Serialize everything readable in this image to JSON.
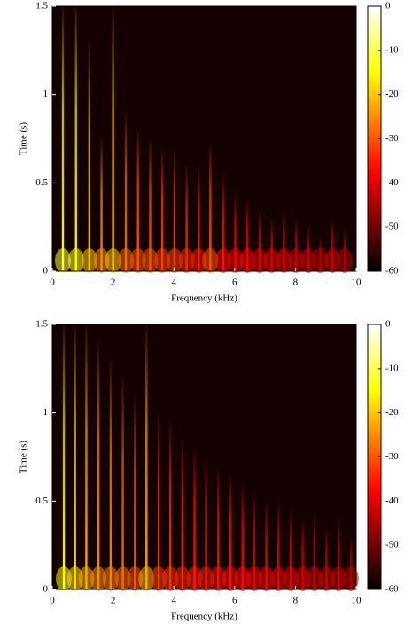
{
  "chart_data": [
    {
      "type": "heatmap",
      "xlabel": "Frequency (kHz)",
      "ylabel": "Time (s)",
      "xlim": [
        0,
        10
      ],
      "ylim": [
        0,
        1.5
      ],
      "xticks": [
        0,
        2,
        4,
        6,
        8,
        10
      ],
      "yticks": [
        0,
        0.5,
        1,
        1.5
      ],
      "clim": [
        -60,
        0
      ],
      "cticks": [
        0,
        -10,
        -20,
        -30,
        -40,
        -50,
        -60
      ],
      "colormap": "hot",
      "x": [
        0.35,
        0.78,
        1.22,
        1.62,
        2.0,
        2.42,
        2.82,
        3.22,
        3.62,
        4.02,
        4.42,
        4.82,
        5.2,
        5.62,
        6.02,
        6.42,
        6.82,
        7.22,
        7.62,
        8.02,
        8.42,
        8.82,
        9.22,
        9.62
      ],
      "values": [
        1.5,
        1.5,
        1.3,
        0.75,
        1.5,
        0.9,
        0.8,
        0.75,
        0.7,
        0.7,
        0.6,
        0.6,
        0.72,
        0.55,
        0.45,
        0.4,
        0.35,
        0.3,
        0.35,
        0.3,
        0.25,
        0.2,
        0.3,
        0.25
      ],
      "levels": [
        -12,
        -15,
        -20,
        -25,
        -20,
        -28,
        -30,
        -30,
        -32,
        -32,
        -34,
        -35,
        -30,
        -36,
        -38,
        -38,
        -40,
        -40,
        -40,
        -42,
        -42,
        -44,
        -42,
        -44
      ]
    },
    {
      "type": "heatmap",
      "xlabel": "Frequency (kHz)",
      "ylabel": "Time (s)",
      "xlim": [
        0,
        10
      ],
      "ylim": [
        0,
        1.5
      ],
      "xticks": [
        0,
        2,
        4,
        6,
        8,
        10
      ],
      "yticks": [
        0,
        0.5,
        1,
        1.5
      ],
      "clim": [
        -60,
        0
      ],
      "cticks": [
        0,
        -10,
        -20,
        -30,
        -40,
        -50,
        -60
      ],
      "colormap": "hot",
      "x": [
        0.38,
        0.75,
        1.12,
        1.52,
        1.92,
        2.32,
        2.72,
        3.1,
        3.5,
        3.88,
        4.28,
        4.68,
        5.06,
        5.46,
        5.86,
        6.26,
        6.64,
        7.04,
        7.44,
        7.84,
        8.24,
        8.62,
        9.02,
        9.42,
        9.82
      ],
      "values": [
        1.5,
        1.5,
        1.5,
        1.4,
        1.3,
        1.2,
        1.1,
        1.5,
        1.0,
        0.95,
        0.85,
        0.8,
        0.75,
        0.7,
        0.65,
        0.6,
        0.55,
        0.5,
        0.5,
        0.45,
        0.4,
        0.45,
        0.35,
        0.4,
        0.3
      ],
      "levels": [
        -15,
        -18,
        -22,
        -25,
        -26,
        -28,
        -30,
        -22,
        -32,
        -33,
        -34,
        -35,
        -35,
        -36,
        -36,
        -37,
        -38,
        -38,
        -40,
        -40,
        -41,
        -42,
        -42,
        -42,
        -44
      ]
    }
  ]
}
